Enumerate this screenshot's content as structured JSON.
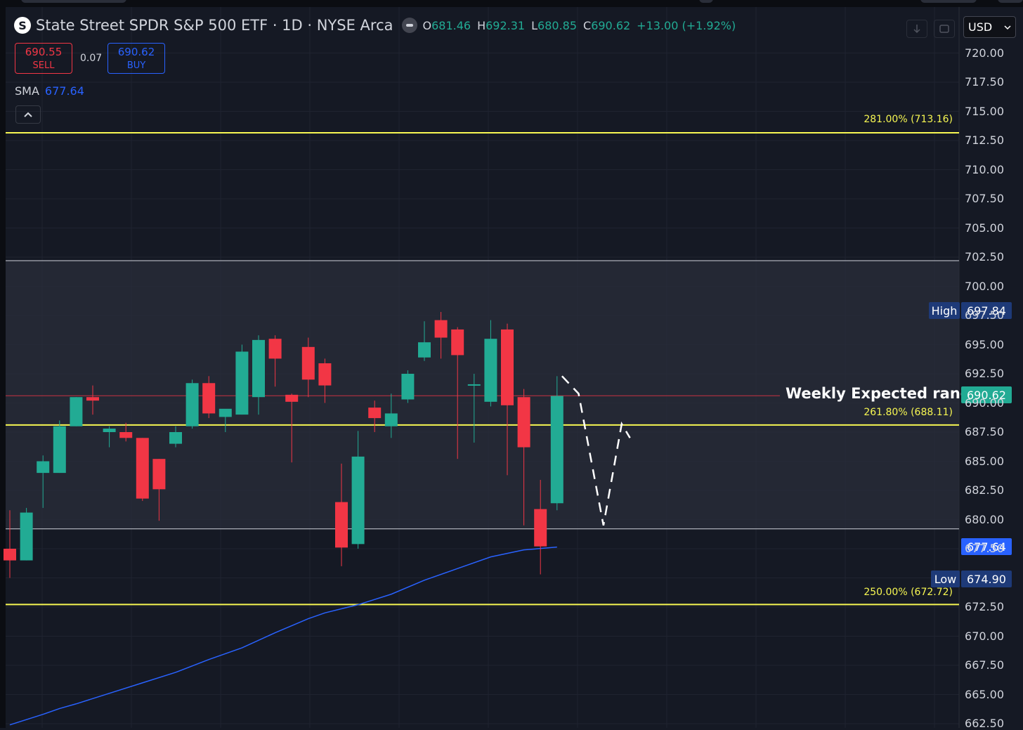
{
  "symbol": {
    "logo_letter": "S",
    "title": "State Street SPDR S&P 500 ETF · 1D · NYSE Arca",
    "open_key": "O",
    "open": "681.46",
    "high_key": "H",
    "high": "692.31",
    "low_key": "L",
    "low": "680.85",
    "close_key": "C",
    "close": "690.62",
    "change": "+13.00 (+1.92%)"
  },
  "trade": {
    "sell_price": "690.55",
    "sell_label": "SELL",
    "spread": "0.07",
    "buy_price": "690.62",
    "buy_label": "BUY"
  },
  "indicator": {
    "name": "SMA",
    "value": "677.64"
  },
  "toolbar": {
    "currency": "USD",
    "collapse_icon": "chevron-up-icon",
    "download_icon": "arrow-down-icon",
    "fullscreen_icon": "fullscreen-icon"
  },
  "colors": {
    "up": "#22ab94",
    "down": "#f23645",
    "sma": "#2962ff",
    "fib": "#f7f752",
    "background": "#151924",
    "range_band": "#2a2e39"
  },
  "chart_data": {
    "type": "candlestick",
    "y_axis_ticks": [
      "720.00",
      "717.50",
      "715.00",
      "712.50",
      "710.00",
      "707.50",
      "705.00",
      "702.50",
      "700.00",
      "697.50",
      "695.00",
      "692.50",
      "690.00",
      "687.50",
      "685.00",
      "682.50",
      "680.00",
      "677.50",
      "672.50",
      "670.00",
      "667.50",
      "665.00",
      "662.50"
    ],
    "ylim": [
      662.5,
      721.5
    ],
    "grid": true,
    "candles": [
      {
        "o": 677.5,
        "h": 680.8,
        "l": 675.0,
        "c": 676.5
      },
      {
        "o": 676.5,
        "h": 681.0,
        "l": 676.5,
        "c": 680.6
      },
      {
        "o": 684.0,
        "h": 685.5,
        "l": 681.0,
        "c": 685.0
      },
      {
        "o": 684.0,
        "h": 688.5,
        "l": 684.0,
        "c": 688.0
      },
      {
        "o": 688.0,
        "h": 690.5,
        "l": 688.0,
        "c": 690.5
      },
      {
        "o": 690.5,
        "h": 691.5,
        "l": 689.0,
        "c": 690.2
      },
      {
        "o": 687.5,
        "h": 688.0,
        "l": 686.2,
        "c": 687.8
      },
      {
        "o": 687.5,
        "h": 688.3,
        "l": 686.7,
        "c": 687.0
      },
      {
        "o": 687.0,
        "h": 687.0,
        "l": 681.6,
        "c": 681.8
      },
      {
        "o": 685.2,
        "h": 685.2,
        "l": 679.9,
        "c": 682.6
      },
      {
        "o": 686.5,
        "h": 688.0,
        "l": 686.2,
        "c": 687.5
      },
      {
        "o": 688.0,
        "h": 692.0,
        "l": 687.8,
        "c": 691.7
      },
      {
        "o": 691.7,
        "h": 692.3,
        "l": 688.7,
        "c": 689.1
      },
      {
        "o": 688.8,
        "h": 689.3,
        "l": 687.5,
        "c": 689.5
      },
      {
        "o": 689.0,
        "h": 695.0,
        "l": 689.0,
        "c": 694.4
      },
      {
        "o": 690.5,
        "h": 695.8,
        "l": 689.0,
        "c": 695.4
      },
      {
        "o": 695.5,
        "h": 695.8,
        "l": 691.4,
        "c": 693.8
      },
      {
        "o": 690.7,
        "h": 690.8,
        "l": 684.9,
        "c": 690.1
      },
      {
        "o": 694.8,
        "h": 695.6,
        "l": 690.5,
        "c": 692.0
      },
      {
        "o": 693.4,
        "h": 693.8,
        "l": 690.0,
        "c": 691.5
      },
      {
        "o": 681.5,
        "h": 684.8,
        "l": 676.0,
        "c": 677.6
      },
      {
        "o": 677.9,
        "h": 687.6,
        "l": 677.5,
        "c": 685.4
      },
      {
        "o": 689.6,
        "h": 690.2,
        "l": 687.5,
        "c": 688.7
      },
      {
        "o": 688.0,
        "h": 690.8,
        "l": 687.0,
        "c": 689.1
      },
      {
        "o": 690.3,
        "h": 692.8,
        "l": 690.0,
        "c": 692.5
      },
      {
        "o": 693.9,
        "h": 697.0,
        "l": 693.6,
        "c": 695.2
      },
      {
        "o": 697.1,
        "h": 697.8,
        "l": 693.8,
        "c": 695.6
      },
      {
        "o": 696.3,
        "h": 696.5,
        "l": 685.2,
        "c": 694.1
      },
      {
        "o": 691.5,
        "h": 692.5,
        "l": 686.6,
        "c": 691.6
      },
      {
        "o": 690.1,
        "h": 697.1,
        "l": 689.7,
        "c": 695.5
      },
      {
        "o": 696.3,
        "h": 696.8,
        "l": 683.8,
        "c": 689.8
      },
      {
        "o": 690.5,
        "h": 691.2,
        "l": 679.5,
        "c": 686.2
      },
      {
        "o": 680.9,
        "h": 683.4,
        "l": 675.3,
        "c": 677.7
      },
      {
        "o": 681.4,
        "h": 692.3,
        "l": 680.8,
        "c": 690.6
      }
    ],
    "sma": [
      {
        "i": 0,
        "v": 662.4
      },
      {
        "i": 2,
        "v": 663.3
      },
      {
        "i": 3,
        "v": 663.8
      },
      {
        "i": 4,
        "v": 664.2
      },
      {
        "i": 6,
        "v": 665.1
      },
      {
        "i": 8,
        "v": 666.0
      },
      {
        "i": 10,
        "v": 666.9
      },
      {
        "i": 12,
        "v": 668.0
      },
      {
        "i": 14,
        "v": 669.0
      },
      {
        "i": 16,
        "v": 670.3
      },
      {
        "i": 18,
        "v": 671.5
      },
      {
        "i": 19,
        "v": 672.0
      },
      {
        "i": 21,
        "v": 672.7
      },
      {
        "i": 23,
        "v": 673.6
      },
      {
        "i": 25,
        "v": 674.8
      },
      {
        "i": 27,
        "v": 675.8
      },
      {
        "i": 29,
        "v": 676.8
      },
      {
        "i": 31,
        "v": 677.4
      },
      {
        "i": 33,
        "v": 677.64
      }
    ],
    "levels": [
      {
        "label": "281.00% (713.16)",
        "price": 713.16,
        "color": "#f7f752"
      },
      {
        "label": "261.80% (688.11)",
        "price": 688.11,
        "color": "#f7f752"
      },
      {
        "label": "250.00% (672.72)",
        "price": 672.72,
        "color": "#f7f752"
      }
    ],
    "expected_range": {
      "top": 702.2,
      "bottom": 679.2,
      "label": "Weekly Expected range"
    },
    "last_price_line": 690.62,
    "projection": [
      [
        33.3,
        692.3
      ],
      [
        34.3,
        690.8
      ],
      [
        35.8,
        679.5
      ],
      [
        36.9,
        688.2
      ],
      [
        37.4,
        687.0
      ]
    ],
    "tags": {
      "high_label": "High",
      "high_value": "697.84",
      "last_value": "690.62",
      "sma_value": "677.64",
      "low_label": "Low",
      "low_value": "674.90"
    }
  }
}
